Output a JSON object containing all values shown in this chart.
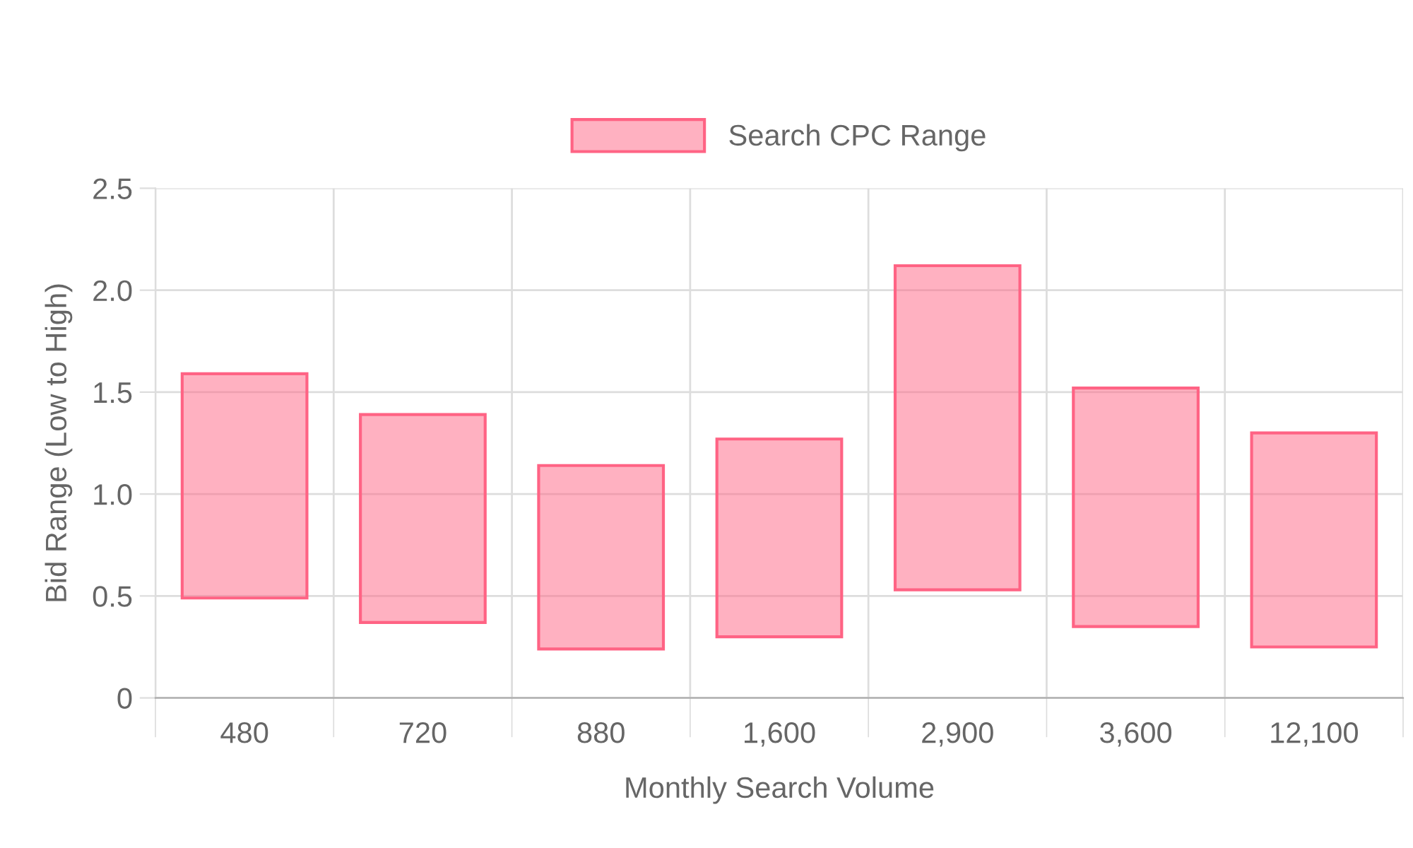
{
  "chart_data": {
    "type": "bar",
    "xlabel": "Monthly Search Volume",
    "ylabel": "Bid Range (Low to High)",
    "categories": [
      "480",
      "720",
      "880",
      "1,600",
      "2,900",
      "3,600",
      "12,100"
    ],
    "series": [
      {
        "name": "Search CPC Range",
        "color": "#ff6384",
        "values": [
          1.1,
          1.02,
          0.9,
          0.97,
          1.59,
          1.17,
          1.05
        ],
        "base": [
          0.49,
          0.37,
          0.24,
          0.3,
          0.53,
          0.35,
          0.25
        ]
      }
    ],
    "ylim": [
      0,
      2.5
    ],
    "yticks": [
      0,
      {
        "value": 0.5,
        "label": "0.5"
      },
      {
        "value": 1.0,
        "label": "1.0"
      },
      {
        "value": 1.5,
        "label": "1.5"
      },
      {
        "value": 2.0,
        "label": "2.0"
      },
      {
        "value": 2.5,
        "label": "2.5"
      }
    ],
    "grid": true,
    "legend": "top"
  }
}
